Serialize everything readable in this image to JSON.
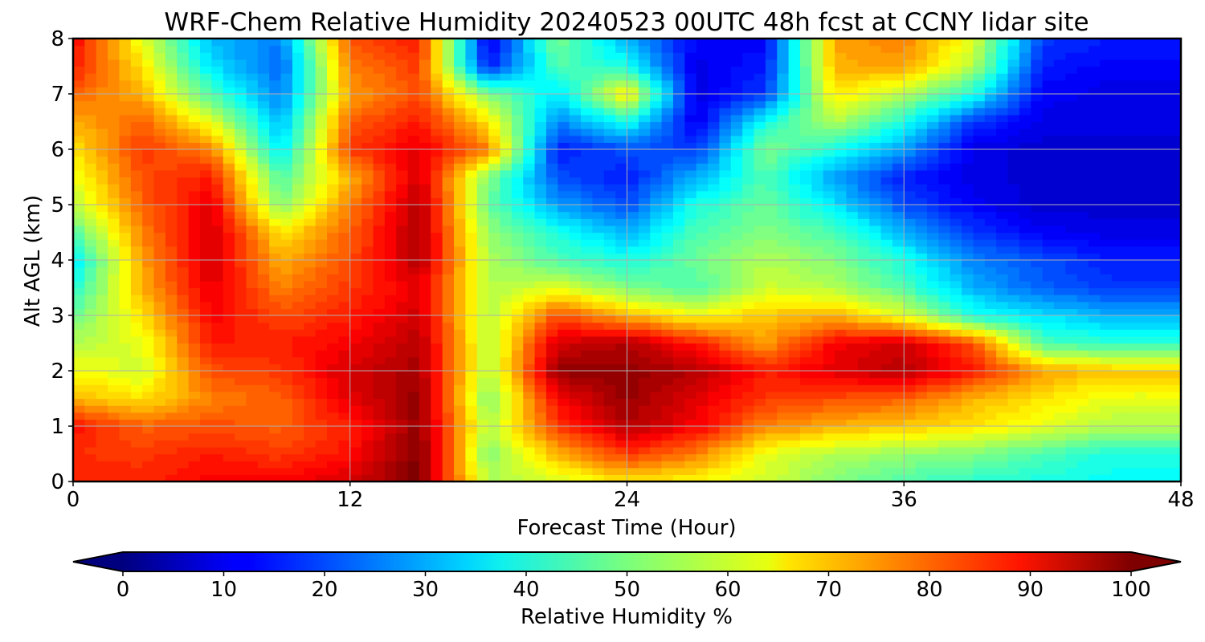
{
  "chart_data": {
    "type": "heatmap",
    "title": "WRF-Chem Relative Humidity 20240523 00UTC 48h fcst at CCNY lidar site",
    "xlabel": "Forecast Time (Hour)",
    "ylabel": "Alt AGL (km)",
    "xlim": [
      0,
      48
    ],
    "ylim": [
      0,
      8
    ],
    "x_ticks": [
      "0",
      "12",
      "24",
      "36",
      "48"
    ],
    "y_ticks": [
      "0",
      "1",
      "2",
      "3",
      "4",
      "5",
      "6",
      "7",
      "8"
    ],
    "grid": true,
    "colorbar": {
      "label": "Relative Humidity %",
      "orientation": "horizontal",
      "placement": "bottom",
      "colormap": "jet",
      "range": [
        0,
        100
      ],
      "ticks": [
        "0",
        "10",
        "20",
        "30",
        "40",
        "50",
        "60",
        "70",
        "80",
        "90",
        "100"
      ],
      "extend": "both"
    },
    "x": [
      0,
      3,
      6,
      9,
      12,
      15,
      18,
      21,
      24,
      27,
      30,
      33,
      36,
      39,
      42,
      45,
      48
    ],
    "y": [
      0,
      0.5,
      1,
      1.5,
      2,
      2.5,
      3,
      3.5,
      4,
      4.5,
      5,
      5.5,
      6,
      6.5,
      7,
      7.5,
      8
    ],
    "z": [
      [
        85,
        84,
        88,
        88,
        92,
        100,
        55,
        58,
        65,
        62,
        58,
        50,
        45,
        42,
        40,
        38,
        38
      ],
      [
        83,
        82,
        85,
        82,
        86,
        100,
        50,
        70,
        82,
        75,
        60,
        55,
        52,
        50,
        45,
        40,
        40
      ],
      [
        86,
        78,
        80,
        78,
        85,
        98,
        55,
        82,
        95,
        88,
        75,
        70,
        68,
        65,
        60,
        55,
        55
      ],
      [
        70,
        65,
        75,
        78,
        90,
        98,
        50,
        88,
        98,
        90,
        82,
        80,
        78,
        70,
        65,
        60,
        60
      ],
      [
        62,
        58,
        80,
        82,
        92,
        96,
        55,
        98,
        98,
        95,
        85,
        90,
        95,
        85,
        72,
        68,
        68
      ],
      [
        55,
        60,
        85,
        85,
        88,
        95,
        55,
        92,
        95,
        85,
        72,
        88,
        92,
        80,
        45,
        42,
        42
      ],
      [
        48,
        65,
        88,
        80,
        85,
        92,
        55,
        80,
        70,
        62,
        68,
        70,
        60,
        40,
        35,
        30,
        30
      ],
      [
        40,
        70,
        90,
        75,
        82,
        90,
        55,
        60,
        50,
        45,
        58,
        55,
        45,
        30,
        22,
        18,
        18
      ],
      [
        35,
        72,
        92,
        70,
        80,
        95,
        55,
        45,
        40,
        48,
        55,
        50,
        40,
        25,
        20,
        15,
        15
      ],
      [
        45,
        75,
        92,
        65,
        78,
        96,
        52,
        40,
        30,
        45,
        50,
        45,
        30,
        18,
        12,
        10,
        10
      ],
      [
        55,
        78,
        90,
        50,
        75,
        95,
        48,
        28,
        20,
        40,
        48,
        35,
        20,
        12,
        8,
        8,
        8
      ],
      [
        60,
        80,
        85,
        45,
        70,
        92,
        50,
        20,
        15,
        30,
        45,
        28,
        15,
        10,
        8,
        8,
        8
      ],
      [
        65,
        82,
        75,
        35,
        82,
        90,
        75,
        15,
        20,
        18,
        50,
        40,
        28,
        10,
        8,
        8,
        8
      ],
      [
        70,
        78,
        60,
        30,
        78,
        85,
        65,
        25,
        40,
        10,
        40,
        55,
        40,
        18,
        10,
        10,
        10
      ],
      [
        78,
        70,
        45,
        25,
        72,
        80,
        50,
        35,
        65,
        10,
        18,
        65,
        55,
        40,
        12,
        10,
        10
      ],
      [
        85,
        65,
        35,
        22,
        75,
        82,
        15,
        45,
        40,
        10,
        15,
        70,
        72,
        55,
        15,
        12,
        12
      ],
      [
        88,
        60,
        30,
        25,
        80,
        85,
        10,
        50,
        30,
        12,
        12,
        72,
        75,
        60,
        18,
        15,
        15
      ]
    ]
  }
}
